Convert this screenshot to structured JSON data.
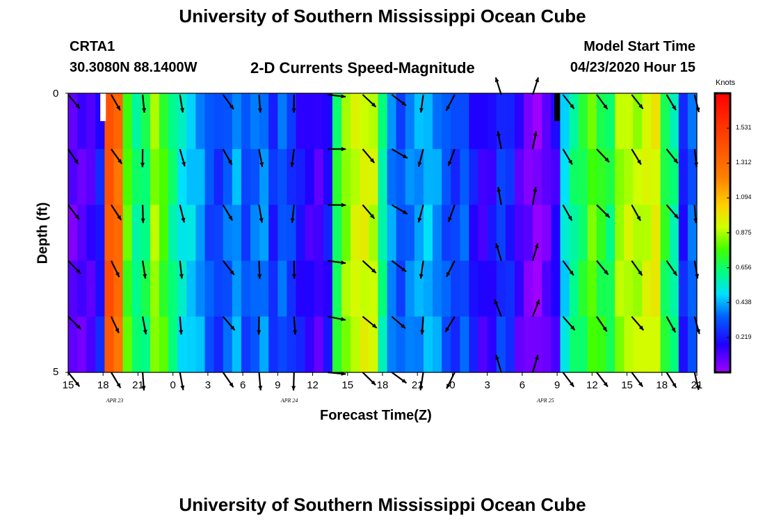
{
  "header": {
    "title_top": "University of Southern Mississippi Ocean Cube",
    "title_bottom": "University of Southern Mississippi Ocean Cube",
    "station_id": "CRTA1",
    "station_coords": "30.3080N 88.1400W",
    "plot_title": "2-D Currents Speed-Magnitude",
    "model_label": "Model Start Time",
    "model_start": "04/23/2020 Hour 15"
  },
  "chart_data": {
    "type": "heatmap",
    "title": "2-D Currents Speed-Magnitude",
    "xlabel": "Forecast Time(Z)",
    "ylabel": "Depth (ft)",
    "y_ticks": [
      "0",
      "5"
    ],
    "ylim": [
      0,
      5
    ],
    "x_tick_labels": [
      "15",
      "18",
      "21",
      "0",
      "3",
      "6",
      "9",
      "12",
      "15",
      "18",
      "21",
      "0",
      "3",
      "6",
      "9",
      "12",
      "15",
      "18",
      "21"
    ],
    "day_labels": [
      {
        "label": "APR 23",
        "hour_offset": 4
      },
      {
        "label": "APR 24",
        "hour_offset": 19
      },
      {
        "label": "APR 25",
        "hour_offset": 41
      }
    ],
    "hours_start": 15,
    "hours_total": 54,
    "colorbar": {
      "unit": "Knots",
      "min": 0.0,
      "max": 1.75,
      "ticks": [
        "1.531",
        "1.312",
        "1.094",
        "0.875",
        "0.656",
        "0.438",
        "0.219"
      ],
      "tick_values": [
        1.531,
        1.312,
        1.094,
        0.875,
        0.656,
        0.438,
        0.219
      ]
    },
    "speed_columns": [
      0.08,
      0.1,
      0.12,
      0.22,
      1.4,
      1.3,
      0.78,
      0.62,
      0.65,
      0.86,
      0.76,
      0.62,
      0.52,
      0.48,
      0.42,
      0.32,
      0.28,
      0.35,
      0.42,
      0.3,
      0.36,
      0.4,
      0.24,
      0.34,
      0.28,
      0.2,
      0.15,
      0.12,
      0.2,
      0.68,
      0.84,
      0.92,
      0.94,
      0.9,
      0.6,
      0.4,
      0.32,
      0.38,
      0.42,
      0.46,
      0.4,
      0.32,
      0.28,
      0.34,
      0.2,
      0.14,
      0.18,
      0.28,
      0.24,
      0.12,
      0.06,
      0.02,
      0.08,
      0.16,
      0.5,
      0.62,
      0.68,
      0.8,
      0.72,
      0.66,
      0.86,
      0.9,
      0.88,
      0.92,
      0.96,
      0.7,
      0.6,
      0.22,
      0.35
    ],
    "missing_data_markers": [
      {
        "hour_offset": 3,
        "color": "#ffffff"
      },
      {
        "hour_offset": 42,
        "color": "#000000"
      }
    ],
    "vector_depths": [
      0,
      1,
      2,
      3,
      4,
      5
    ],
    "vectors": [
      {
        "hour": 0,
        "dir": 140
      },
      {
        "hour": 3.7,
        "dir": 150
      },
      {
        "hour": 6.4,
        "dir": 175
      },
      {
        "hour": 9.6,
        "dir": 170
      },
      {
        "hour": 13.3,
        "dir": 145
      },
      {
        "hour": 16.4,
        "dir": 175
      },
      {
        "hour": 19.4,
        "dir": 182
      },
      {
        "hour": 22.3,
        "dir": 95
      },
      {
        "hour": 25.3,
        "dir": 135
      },
      {
        "hour": 27.8,
        "dir": 125
      },
      {
        "hour": 30.5,
        "dir": 190
      },
      {
        "hour": 33.2,
        "dir": 205
      },
      {
        "hour": 37.2,
        "dir": 345
      },
      {
        "hour": 39.9,
        "dir": 15
      },
      {
        "hour": 42.5,
        "dir": 145
      },
      {
        "hour": 45.4,
        "dir": 140
      },
      {
        "hour": 48.4,
        "dir": 145
      },
      {
        "hour": 51.4,
        "dir": 145
      },
      {
        "hour": 53.8,
        "dir": 170
      }
    ]
  }
}
